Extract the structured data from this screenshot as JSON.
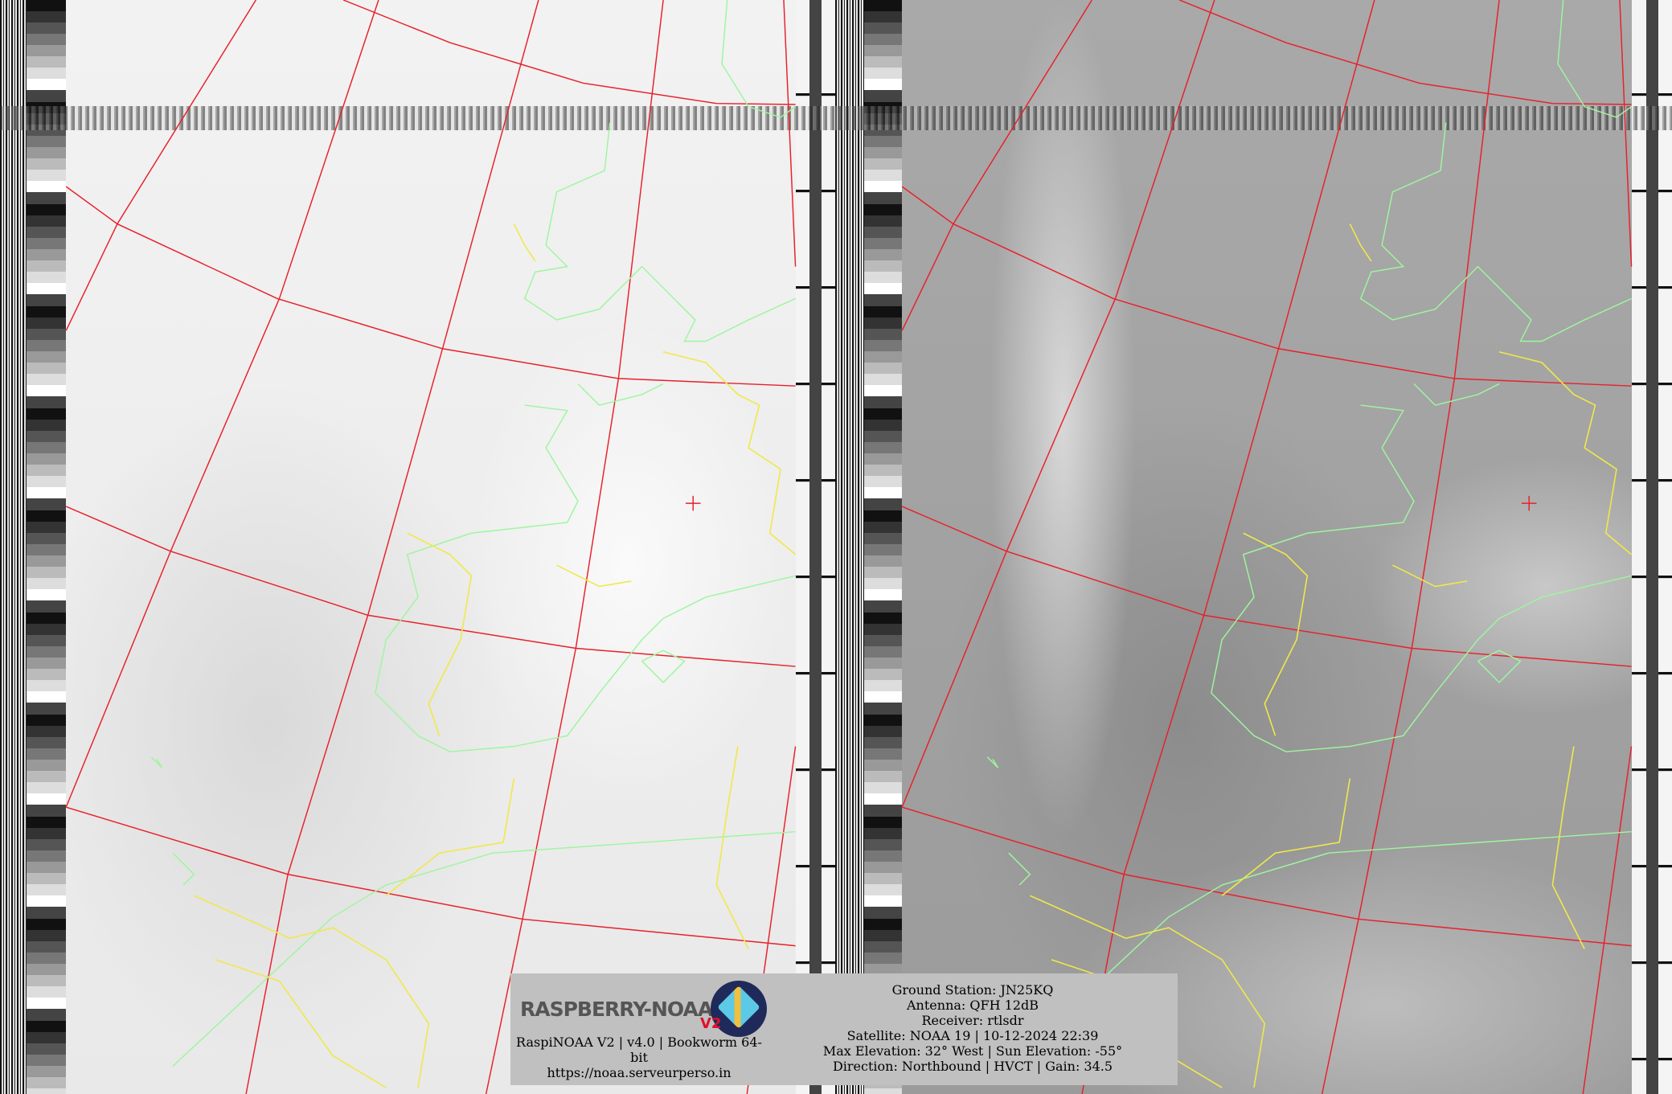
{
  "image": {
    "satellite_image": "NOAA APT dual-channel image with map overlay",
    "colors": {
      "grid": "#e8202a",
      "coastline": "#9ff59f",
      "borders": "#f0e84a",
      "info_panel": "#c0c0c0"
    }
  },
  "logo": {
    "name": "RASPBERRY-NOAA",
    "badge": "V2"
  },
  "info": {
    "software": "RaspiNOAA V2 | v4.0 | Bookworm 64-bit",
    "url": "https://noaa.serveurperso.in",
    "lines": [
      "Ground Station: JN25KQ",
      "Antenna: QFH 12dB",
      "Receiver: rtlsdr",
      "Satellite: NOAA 19 | 10-12-2024 22:39",
      "Max Elevation: 32° West | Sun Elevation: -55°",
      "Direction: Northbound | HVCT | Gain: 34.5"
    ]
  }
}
